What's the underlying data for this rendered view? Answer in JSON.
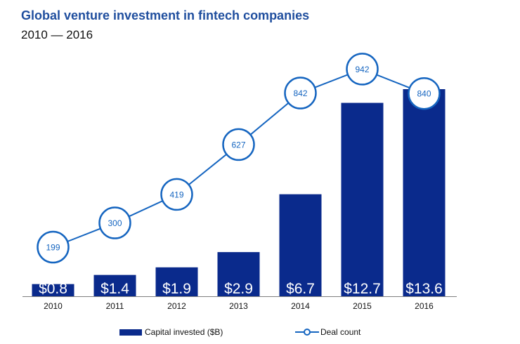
{
  "title": "Global venture investment in fintech companies",
  "subtitle": "2010 — 2016",
  "colors": {
    "bar": "#0a2a8c",
    "line": "#1565c0",
    "title": "#1f4e9e"
  },
  "chart_data": {
    "type": "bar",
    "categories": [
      "2010",
      "2011",
      "2012",
      "2013",
      "2014",
      "2015",
      "2016"
    ],
    "series": [
      {
        "name": "Capital invested ($B)",
        "type": "bar",
        "values": [
          0.8,
          1.4,
          1.9,
          2.9,
          6.7,
          12.7,
          13.6
        ],
        "labels": [
          "$0.8",
          "$1.4",
          "$1.9",
          "$2.9",
          "$6.7",
          "$12.7",
          "$13.6"
        ]
      },
      {
        "name": "Deal count",
        "type": "line",
        "values": [
          199,
          300,
          419,
          627,
          842,
          942,
          840
        ]
      }
    ],
    "grid": false,
    "legend": "bottom"
  }
}
